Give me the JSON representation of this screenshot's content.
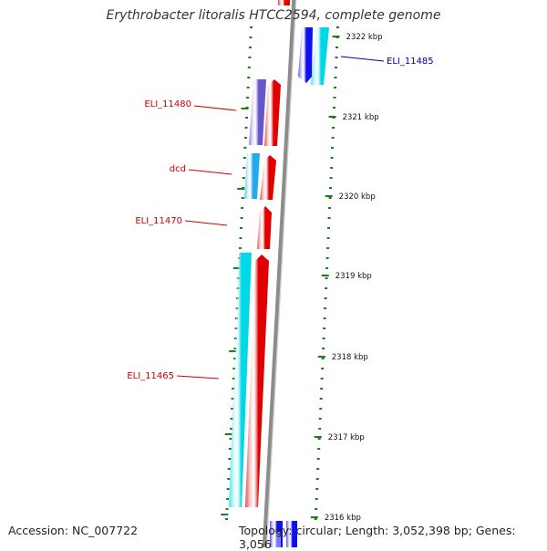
{
  "title": "Erythrobacter litoralis HTCC2594, complete genome",
  "accession_label": "Accession: NC_007722",
  "topology_label": "Topology: circular; Length: 3,052,398 bp; Genes: 3,056",
  "position_labels": [
    "2322 kbp",
    "2321 kbp",
    "2320 kbp",
    "2319 kbp",
    "2318 kbp",
    "2317 kbp",
    "2316 kbp"
  ],
  "colors": {
    "backbone": "#8c8c8c",
    "tick": "#1a7f1a",
    "forward_gene": "#e00000",
    "cyan_gene": "#00d8e8",
    "light_blue_gene": "#22aaee",
    "blue_gene": "#1010ee",
    "purple_gene": "#6655cc",
    "label_red": "#cc0000",
    "label_blue": "#0000aa"
  },
  "genes": [
    {
      "name": "ELI_11485",
      "color_key": "label_blue"
    },
    {
      "name": "ELI_11480",
      "color_key": "label_red"
    },
    {
      "name": "dcd",
      "color_key": "label_red"
    },
    {
      "name": "ELI_11470",
      "color_key": "label_red"
    },
    {
      "name": "ELI_11465",
      "color_key": "label_red"
    }
  ]
}
